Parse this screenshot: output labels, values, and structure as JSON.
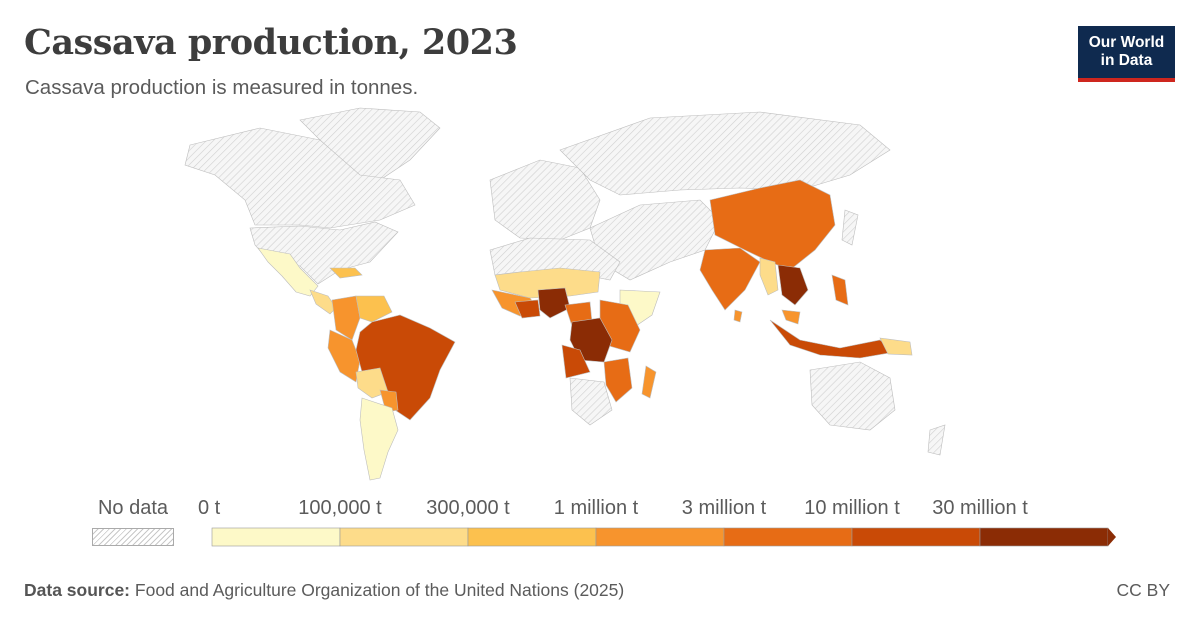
{
  "header": {
    "title": "Cassava production, 2023",
    "subtitle": "Cassava production is measured in tonnes."
  },
  "logo": {
    "line1": "Our World",
    "line2": "in Data"
  },
  "legend": {
    "nodata_label": "No data",
    "bins": [
      {
        "label": "0 t",
        "color": "#fdf9c8"
      },
      {
        "label": "100,000 t",
        "color": "#fddc8a"
      },
      {
        "label": "300,000 t",
        "color": "#fcc14e"
      },
      {
        "label": "1 million t",
        "color": "#f7942d"
      },
      {
        "label": "3 million t",
        "color": "#e76c15"
      },
      {
        "label": "10 million t",
        "color": "#c94a06"
      },
      {
        "label": "30 million t",
        "color": "#8b2c05"
      }
    ]
  },
  "footer": {
    "source_label": "Data source:",
    "source_text": "Food and Agriculture Organization of the United Nations (2025)",
    "license": "CC BY"
  }
}
